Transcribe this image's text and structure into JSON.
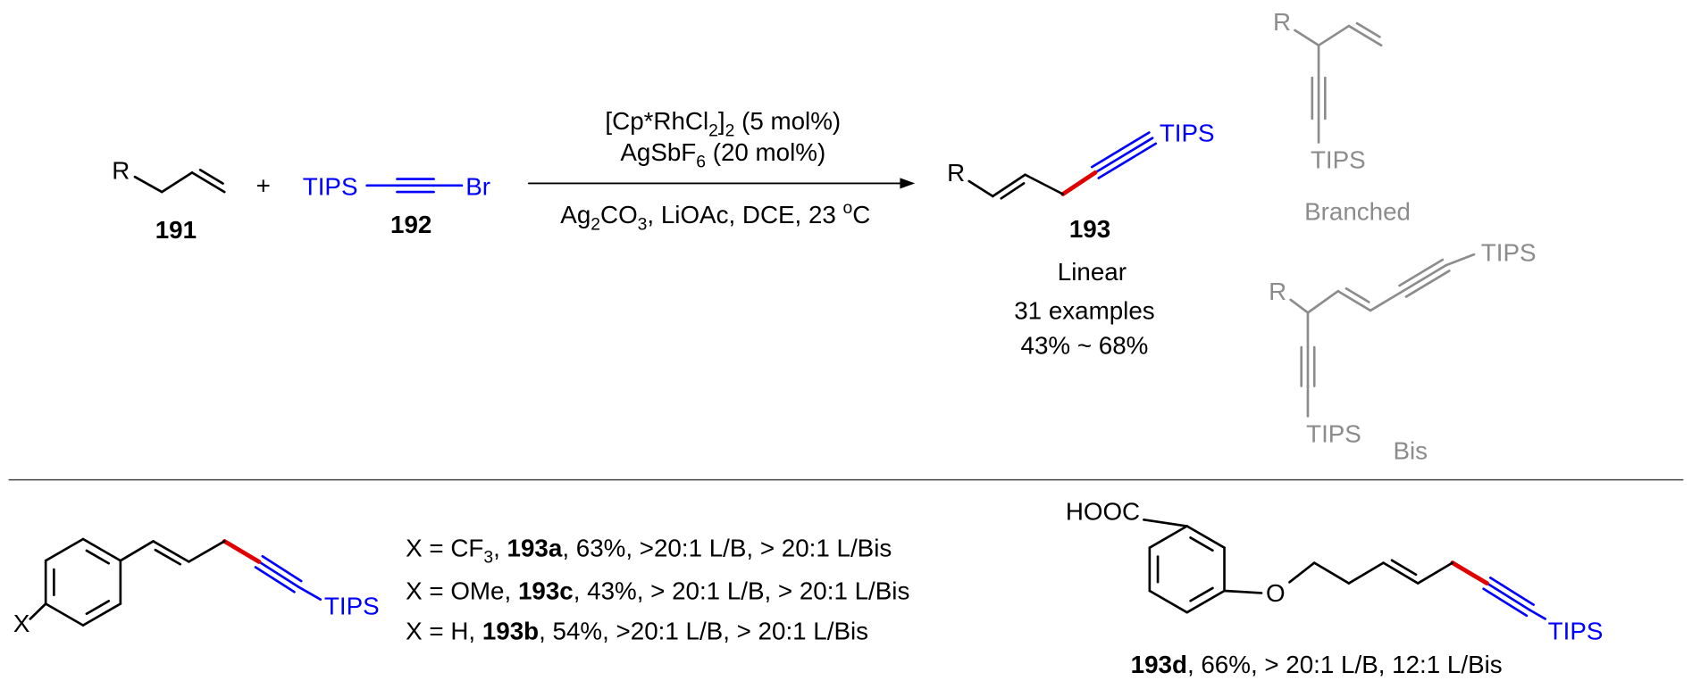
{
  "reaction": {
    "reactant1": {
      "r": "R",
      "id": "191"
    },
    "plus": "+",
    "reactant2": {
      "left": "TIPS",
      "right": "Br",
      "id": "192"
    },
    "conditions": {
      "above": [
        [
          "[Cp*RhCl",
          "2",
          "]",
          "2",
          " (5 mol%)"
        ],
        [
          "AgSbF",
          "6",
          " (20 mol%)"
        ]
      ],
      "below": [
        "Ag",
        "2",
        "CO",
        "3",
        ", LiOAc, DCE, 23 ",
        "o",
        "C"
      ]
    },
    "product": {
      "r": "R",
      "tips": "TIPS",
      "id": "193",
      "type": "Linear",
      "examples": "31 examples",
      "yield": "43% ~ 68%"
    },
    "branched": {
      "r": "R",
      "tips": "TIPS",
      "name": "Branched"
    },
    "bis": {
      "r": "R",
      "tips1": "TIPS",
      "tips2": "TIPS",
      "name": "Bis"
    }
  },
  "examples": {
    "aryl": {
      "x": "X",
      "tips": "TIPS",
      "rows": [
        [
          "X = CF",
          "3",
          ", ",
          "193a",
          ", 63%, >20:1 L/B, > 20:1 L/Bis"
        ],
        [
          "X = OMe, ",
          "193c",
          ", 43%, > 20:1 L/B, > 20:1 L/Bis"
        ],
        [
          "X = H, ",
          "193b",
          ", 54%, >20:1 L/B, > 20:1 L/Bis"
        ]
      ]
    },
    "acid": {
      "hooc": "HOOC",
      "o": "O",
      "tips": "TIPS",
      "caption": [
        "193d",
        ", 66%, > 20:1 L/B, 12:1 L/Bis"
      ]
    }
  }
}
